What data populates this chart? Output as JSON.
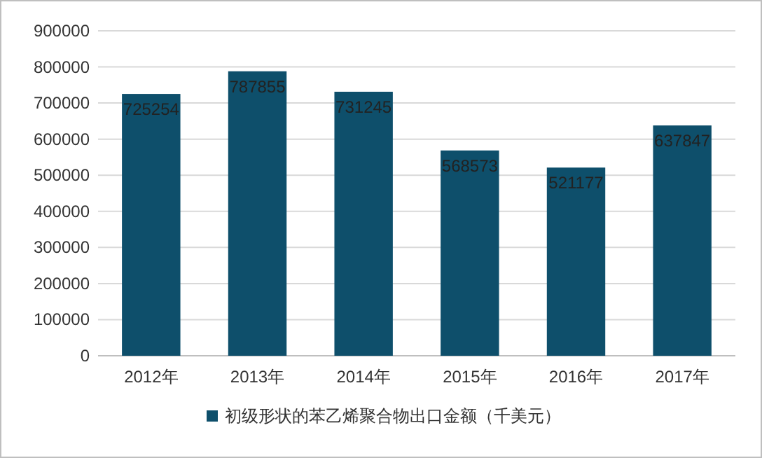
{
  "chart_data": {
    "type": "bar",
    "categories": [
      "2012年",
      "2013年",
      "2014年",
      "2015年",
      "2016年",
      "2017年"
    ],
    "series": [
      {
        "name": "初级形状的苯乙烯聚合物出口金额（千美元）",
        "color": "#0e4f6b",
        "values": [
          725254,
          787855,
          731245,
          568573,
          521177,
          637847
        ]
      }
    ],
    "ylim": [
      0,
      900000
    ],
    "yticks": [
      0,
      100000,
      200000,
      300000,
      400000,
      500000,
      600000,
      700000,
      800000,
      900000
    ],
    "grid": "y",
    "data_labels": true,
    "legend": "bottom"
  }
}
